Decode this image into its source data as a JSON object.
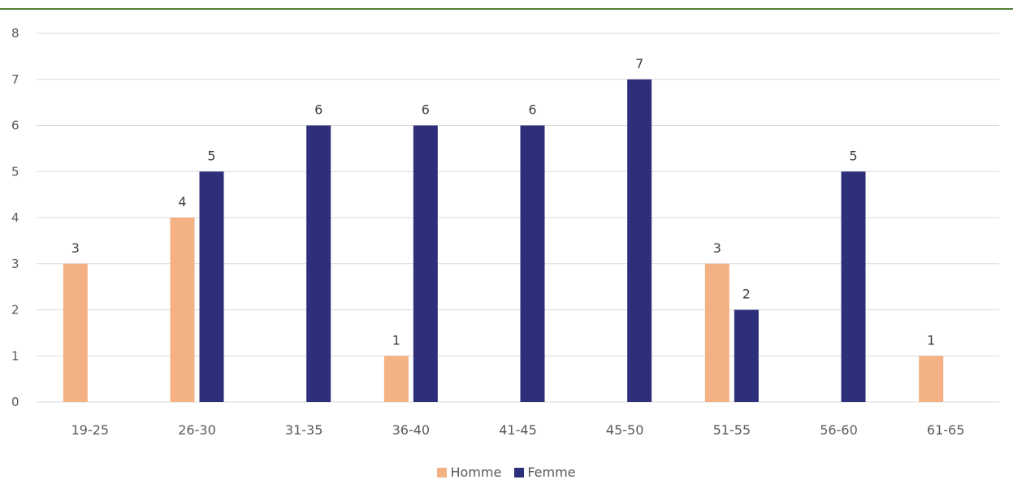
{
  "chart_data": {
    "type": "bar",
    "categories": [
      "19-25",
      "26-30",
      "31-35",
      "36-40",
      "41-45",
      "45-50",
      "51-55",
      "56-60",
      "61-65"
    ],
    "series": [
      {
        "name": "Homme",
        "values": [
          3,
          4,
          0,
          1,
          0,
          0,
          3,
          0,
          1
        ],
        "color": "#F4B183"
      },
      {
        "name": "Femme",
        "values": [
          0,
          5,
          6,
          6,
          6,
          7,
          2,
          5,
          0
        ],
        "color": "#2E2F7B"
      }
    ],
    "ylim": [
      0,
      8
    ],
    "yticks": [
      "0",
      "1",
      "2",
      "3",
      "4",
      "5",
      "6",
      "7",
      "8"
    ],
    "grid": true,
    "legend_position": "bottom",
    "title": "",
    "xlabel": "",
    "ylabel": ""
  },
  "legend": {
    "homme_label": "Homme",
    "femme_label": "Femme"
  }
}
